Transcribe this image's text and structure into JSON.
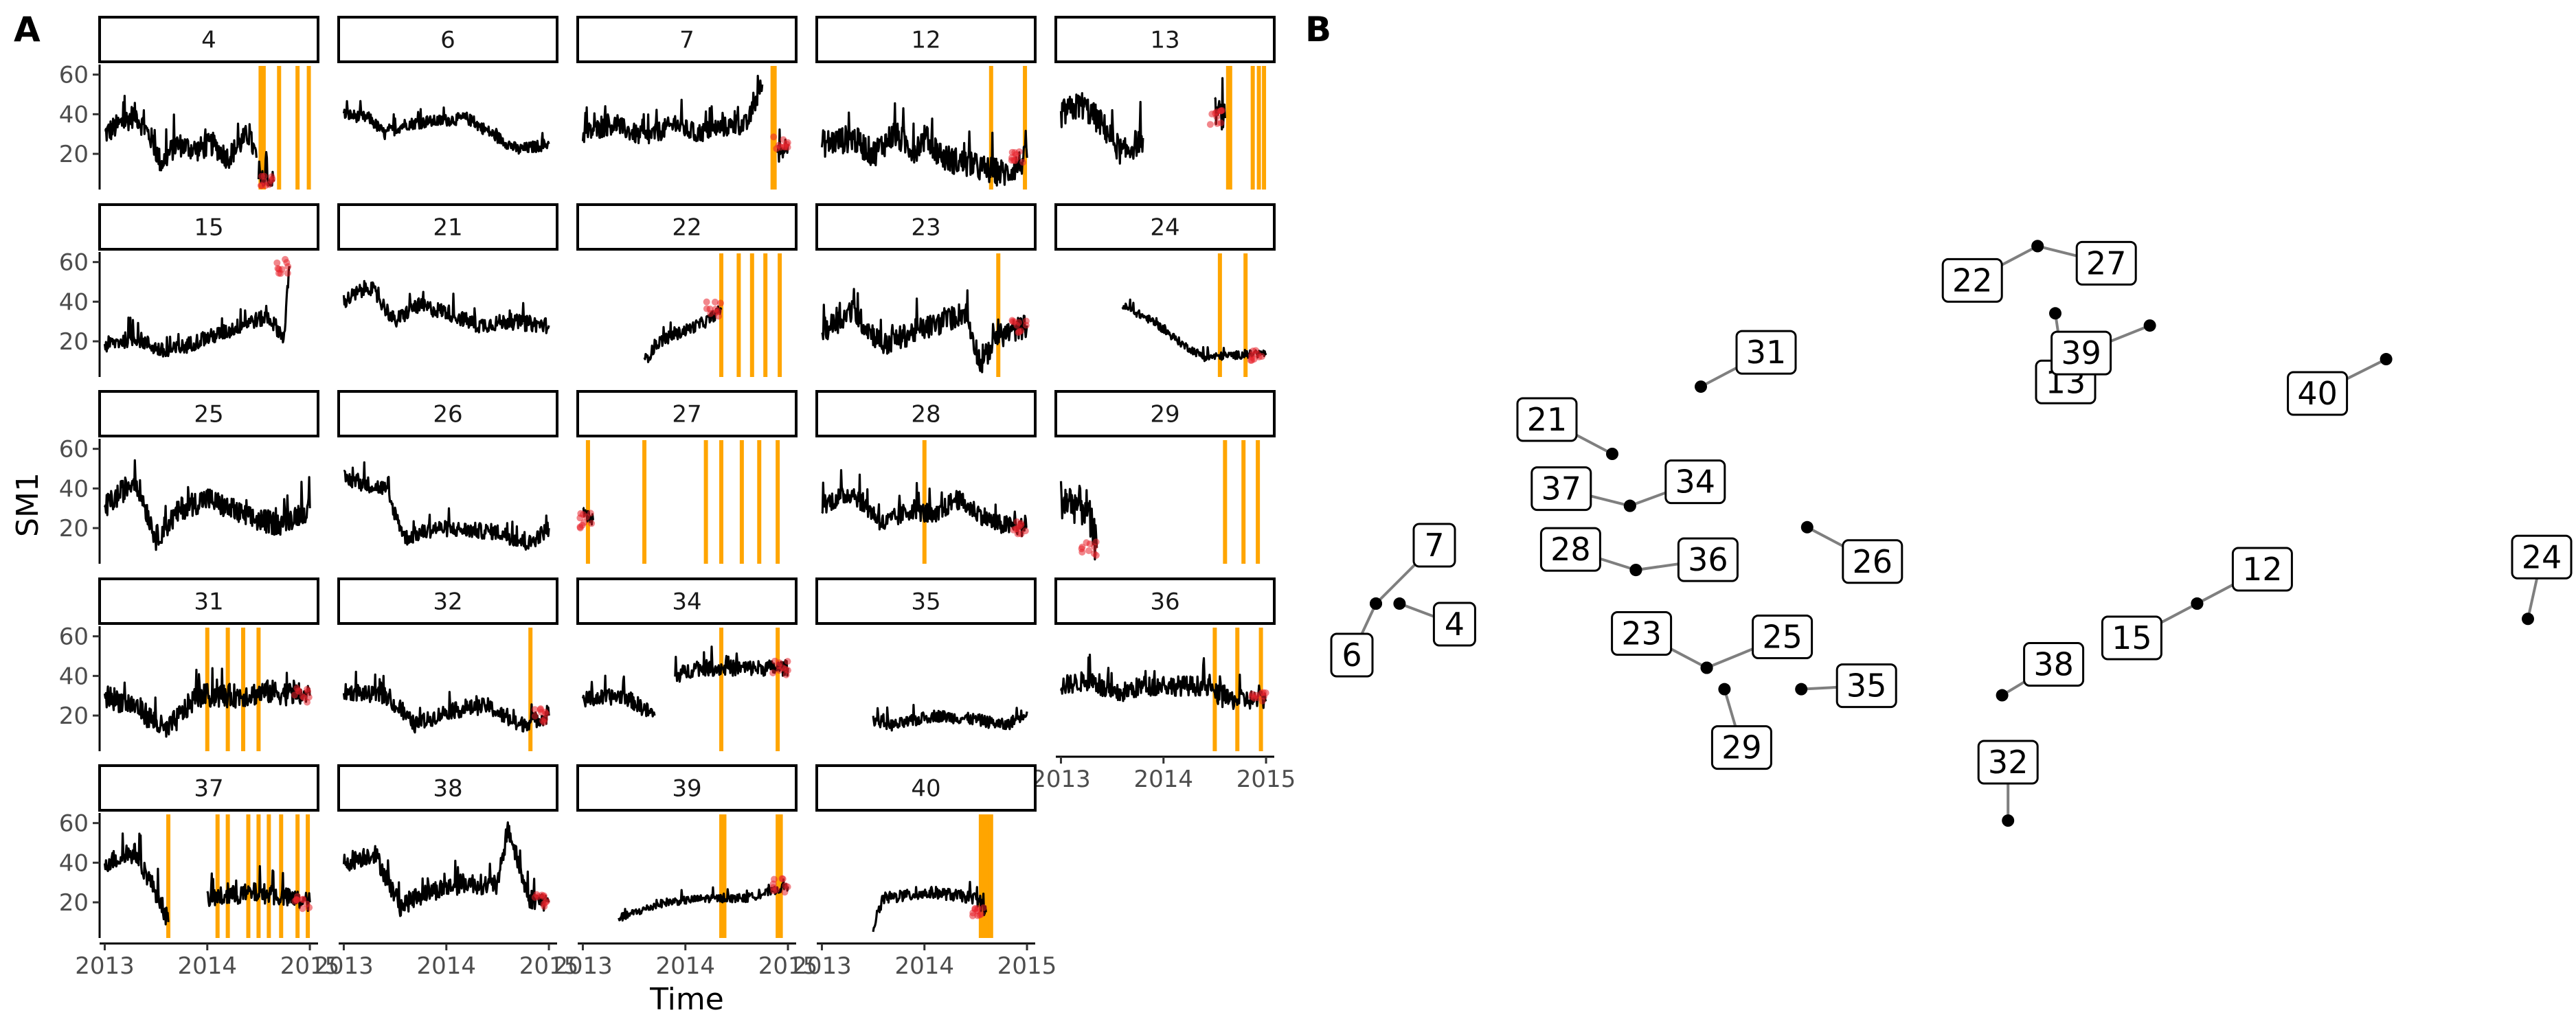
{
  "panel_labels": {
    "a": "A",
    "b": "B"
  },
  "colors": {
    "series": "#000000",
    "anomaly_points": "#e8222b",
    "events": "#ffa500",
    "network_edge": "#7f7f7f",
    "node": "#000000"
  },
  "chart_data": [
    {
      "type": "line",
      "panel": "A",
      "facet_by": "station",
      "xlabel": "Time",
      "ylabel": "SM1",
      "x_ticks": [
        "2013",
        "2014",
        "2015"
      ],
      "y_ticks": [
        20,
        40,
        60
      ],
      "xlim": [
        "2013-01-01",
        "2015-01-10"
      ],
      "ylim": [
        2,
        63
      ],
      "grid": false,
      "series_color": "#000000",
      "anomaly_color": "#e8222b",
      "event_line_color": "#ffa500",
      "facets": [
        {
          "id": "4",
          "events": [
            2014.52,
            2014.55,
            2014.7,
            2014.88,
            2014.99
          ],
          "profile": [
            [
              2013.0,
              30
            ],
            [
              2013.3,
              40
            ],
            [
              2013.45,
              28
            ],
            [
              2013.55,
              15
            ],
            [
              2013.7,
              25
            ],
            [
              2013.9,
              22
            ],
            [
              2014.05,
              25
            ],
            [
              2014.2,
              18
            ],
            [
              2014.4,
              30
            ],
            [
              2014.48,
              18
            ]
          ],
          "profile2": [
            [
              2014.5,
              6
            ],
            [
              2014.65,
              6
            ]
          ],
          "noise": 6
        },
        {
          "id": "6",
          "events": [],
          "profile": [
            [
              2013.0,
              40
            ],
            [
              2013.25,
              38
            ],
            [
              2013.4,
              30
            ],
            [
              2013.6,
              35
            ],
            [
              2014.2,
              38
            ],
            [
              2014.7,
              22
            ],
            [
              2015.0,
              25
            ]
          ],
          "noise": 3
        },
        {
          "id": "7",
          "events": [
            2014.85,
            2014.87
          ],
          "profile": [
            [
              2013.0,
              30
            ],
            [
              2013.3,
              35
            ],
            [
              2013.6,
              28
            ],
            [
              2013.9,
              35
            ],
            [
              2014.1,
              30
            ],
            [
              2014.3,
              33
            ],
            [
              2014.6,
              35
            ],
            [
              2014.75,
              55
            ]
          ],
          "profile2": [
            [
              2014.9,
              20
            ],
            [
              2015.0,
              25
            ]
          ],
          "noise": 5
        },
        {
          "id": "12",
          "events": [
            2014.65,
            2014.98
          ],
          "profile": [
            [
              2013.0,
              25
            ],
            [
              2013.3,
              28
            ],
            [
              2013.5,
              20
            ],
            [
              2013.7,
              30
            ],
            [
              2013.9,
              22
            ],
            [
              2014.0,
              28
            ],
            [
              2014.2,
              18
            ],
            [
              2014.6,
              12
            ],
            [
              2014.8,
              10
            ],
            [
              2015.0,
              18
            ]
          ],
          "noise": 7
        },
        {
          "id": "13",
          "events": [
            2014.63,
            2014.65,
            2014.87,
            2014.93,
            2014.98
          ],
          "profile": [
            [
              2013.0,
              40
            ],
            [
              2013.2,
              45
            ],
            [
              2013.4,
              35
            ],
            [
              2013.6,
              20
            ],
            [
              2013.8,
              28
            ]
          ],
          "profile2": [
            [
              2014.5,
              42
            ],
            [
              2014.6,
              38
            ]
          ],
          "noise": 7
        },
        {
          "id": "15",
          "events": [],
          "profile": [
            [
              2013.0,
              18
            ],
            [
              2013.3,
              22
            ],
            [
              2013.6,
              14
            ],
            [
              2013.9,
              20
            ],
            [
              2014.2,
              25
            ],
            [
              2014.4,
              30
            ],
            [
              2014.6,
              32
            ],
            [
              2014.75,
              22
            ],
            [
              2014.8,
              58
            ]
          ],
          "noise": 4
        },
        {
          "id": "21",
          "events": [],
          "profile": [
            [
              2013.0,
              40
            ],
            [
              2013.25,
              48
            ],
            [
              2013.5,
              30
            ],
            [
              2013.7,
              38
            ],
            [
              2014.0,
              35
            ],
            [
              2014.3,
              28
            ],
            [
              2014.6,
              30
            ],
            [
              2015.0,
              28
            ]
          ],
          "noise": 4
        },
        {
          "id": "22",
          "events": [
            2014.35,
            2014.52,
            2014.65,
            2014.78,
            2014.92
          ],
          "profile": [
            [
              2013.6,
              10
            ],
            [
              2013.75,
              20
            ],
            [
              2014.2,
              30
            ],
            [
              2014.35,
              36
            ]
          ],
          "noise": 3
        },
        {
          "id": "23",
          "events": [
            2014.72
          ],
          "profile": [
            [
              2013.0,
              25
            ],
            [
              2013.3,
              35
            ],
            [
              2013.6,
              18
            ],
            [
              2013.9,
              25
            ],
            [
              2014.2,
              30
            ],
            [
              2014.4,
              35
            ],
            [
              2014.55,
              8
            ],
            [
              2014.7,
              22
            ],
            [
              2015.0,
              28
            ]
          ],
          "noise": 6
        },
        {
          "id": "24",
          "events": [
            2014.55,
            2014.8
          ],
          "profile": [
            [
              2013.6,
              38
            ],
            [
              2013.9,
              30
            ],
            [
              2014.2,
              18
            ],
            [
              2014.4,
              12
            ],
            [
              2015.0,
              14
            ]
          ],
          "noise": 2
        },
        {
          "id": "25",
          "events": [],
          "profile": [
            [
              2013.0,
              30
            ],
            [
              2013.3,
              45
            ],
            [
              2013.5,
              15
            ],
            [
              2013.75,
              30
            ],
            [
              2014.0,
              35
            ],
            [
              2014.4,
              25
            ],
            [
              2014.7,
              22
            ],
            [
              2015.0,
              30
            ]
          ],
          "noise": 6
        },
        {
          "id": "26",
          "events": [],
          "profile": [
            [
              2013.0,
              45
            ],
            [
              2013.4,
              40
            ],
            [
              2013.6,
              15
            ],
            [
              2013.9,
              20
            ],
            [
              2014.5,
              18
            ],
            [
              2014.8,
              12
            ],
            [
              2015.0,
              20
            ]
          ],
          "noise": 4
        },
        {
          "id": "27",
          "events": [
            2013.05,
            2013.6,
            2014.2,
            2014.35,
            2014.55,
            2014.72,
            2014.9
          ],
          "profile": [
            [
              2013.0,
              28
            ],
            [
              2013.1,
              24
            ]
          ],
          "noise": 3
        },
        {
          "id": "28",
          "events": [
            2014.0
          ],
          "profile": [
            [
              2013.0,
              32
            ],
            [
              2013.3,
              38
            ],
            [
              2013.6,
              22
            ],
            [
              2013.9,
              30
            ],
            [
              2014.1,
              25
            ],
            [
              2014.3,
              35
            ],
            [
              2014.7,
              22
            ],
            [
              2015.0,
              20
            ]
          ],
          "noise": 5
        },
        {
          "id": "29",
          "events": [
            2014.6,
            2014.78,
            2014.92
          ],
          "profile": [
            [
              2013.0,
              35
            ],
            [
              2013.25,
              30
            ],
            [
              2013.35,
              10
            ]
          ],
          "noise": 10
        },
        {
          "id": "31",
          "events": [
            2014.0,
            2014.2,
            2014.35,
            2014.5
          ],
          "profile": [
            [
              2013.0,
              30
            ],
            [
              2013.3,
              25
            ],
            [
              2013.6,
              12
            ],
            [
              2013.9,
              30
            ],
            [
              2014.3,
              30
            ],
            [
              2014.6,
              32
            ],
            [
              2015.0,
              30
            ]
          ],
          "noise": 6
        },
        {
          "id": "32",
          "events": [
            2014.82
          ],
          "profile": [
            [
              2013.0,
              32
            ],
            [
              2013.4,
              30
            ],
            [
              2013.7,
              15
            ],
            [
              2014.0,
              22
            ],
            [
              2014.4,
              25
            ],
            [
              2014.7,
              15
            ],
            [
              2015.0,
              20
            ]
          ],
          "noise": 4
        },
        {
          "id": "34",
          "events": [
            2014.35,
            2014.9
          ],
          "profile": [
            [
              2013.0,
              28
            ],
            [
              2013.4,
              30
            ],
            [
              2013.7,
              20
            ]
          ],
          "profile2": [
            [
              2013.9,
              40
            ],
            [
              2014.1,
              44
            ],
            [
              2015.0,
              44
            ]
          ],
          "noise": 4
        },
        {
          "id": "35",
          "events": [],
          "profile": [
            [
              2013.5,
              18
            ],
            [
              2013.7,
              15
            ],
            [
              2014.1,
              20
            ],
            [
              2014.5,
              18
            ],
            [
              2014.8,
              15
            ],
            [
              2015.0,
              22
            ]
          ],
          "noise": 3
        },
        {
          "id": "36",
          "events": [
            2014.5,
            2014.72,
            2014.95
          ],
          "profile": [
            [
              2013.0,
              35
            ],
            [
              2013.3,
              38
            ],
            [
              2013.5,
              30
            ],
            [
              2013.8,
              35
            ],
            [
              2014.4,
              35
            ],
            [
              2014.6,
              28
            ],
            [
              2015.0,
              28
            ]
          ],
          "noise": 5
        },
        {
          "id": "37",
          "events": [
            2013.62,
            2014.1,
            2014.2,
            2014.4,
            2014.5,
            2014.6,
            2014.72,
            2014.88,
            2014.98
          ],
          "profile": [
            [
              2013.0,
              40
            ],
            [
              2013.3,
              45
            ],
            [
              2013.55,
              20
            ],
            [
              2013.62,
              10
            ]
          ],
          "profile2": [
            [
              2014.0,
              22
            ],
            [
              2014.5,
              25
            ],
            [
              2015.0,
              20
            ]
          ],
          "noise": 5
        },
        {
          "id": "38",
          "events": [],
          "profile": [
            [
              2013.0,
              40
            ],
            [
              2013.3,
              45
            ],
            [
              2013.55,
              18
            ],
            [
              2013.8,
              25
            ],
            [
              2014.2,
              30
            ],
            [
              2014.5,
              28
            ],
            [
              2014.6,
              58
            ],
            [
              2014.8,
              22
            ],
            [
              2015.0,
              20
            ]
          ],
          "noise": 5
        },
        {
          "id": "39",
          "events": [
            2014.35,
            2014.38,
            2014.9,
            2014.93
          ],
          "profile": [
            [
              2013.35,
              12
            ],
            [
              2013.8,
              20
            ],
            [
              2014.2,
              22
            ],
            [
              2014.6,
              22
            ],
            [
              2015.0,
              28
            ]
          ],
          "noise": 2
        },
        {
          "id": "40",
          "events": [
            2014.55,
            2014.58,
            2014.6,
            2014.63,
            2014.65
          ],
          "profile": [
            [
              2013.5,
              8
            ],
            [
              2013.6,
              22
            ],
            [
              2014.1,
              25
            ],
            [
              2014.5,
              22
            ],
            [
              2014.6,
              15
            ]
          ],
          "noise": 3
        }
      ]
    },
    {
      "type": "scatter",
      "panel": "B",
      "grid": false,
      "nodes": [
        {
          "id": "4",
          "x": 0.045,
          "y": 0.355,
          "label": "4"
        },
        {
          "id": "6",
          "x": 0.025,
          "y": 0.355,
          "label": "6"
        },
        {
          "id": "7",
          "x": 0.025,
          "y": 0.355,
          "label": "7"
        },
        {
          "id": "12",
          "x": 0.72,
          "y": 0.355,
          "label": "12"
        },
        {
          "id": "13",
          "x": 0.6,
          "y": 0.83,
          "label": "13"
        },
        {
          "id": "15",
          "x": 0.72,
          "y": 0.355,
          "label": "15"
        },
        {
          "id": "21",
          "x": 0.225,
          "y": 0.6,
          "label": "21"
        },
        {
          "id": "22",
          "x": 0.585,
          "y": 0.94,
          "label": "22"
        },
        {
          "id": "23",
          "x": 0.305,
          "y": 0.25,
          "label": "23"
        },
        {
          "id": "24",
          "x": 1.0,
          "y": 0.33,
          "label": "24"
        },
        {
          "id": "25",
          "x": 0.305,
          "y": 0.25,
          "label": "25"
        },
        {
          "id": "26",
          "x": 0.39,
          "y": 0.48,
          "label": "26"
        },
        {
          "id": "27",
          "x": 0.585,
          "y": 0.94,
          "label": "27"
        },
        {
          "id": "28",
          "x": 0.245,
          "y": 0.41,
          "label": "28"
        },
        {
          "id": "29",
          "x": 0.32,
          "y": 0.215,
          "label": "29"
        },
        {
          "id": "31",
          "x": 0.3,
          "y": 0.71,
          "label": "31"
        },
        {
          "id": "32",
          "x": 0.56,
          "y": 0.0,
          "label": "32"
        },
        {
          "id": "34",
          "x": 0.24,
          "y": 0.515,
          "label": "34"
        },
        {
          "id": "35",
          "x": 0.385,
          "y": 0.215,
          "label": "35"
        },
        {
          "id": "36",
          "x": 0.245,
          "y": 0.41,
          "label": "36"
        },
        {
          "id": "37",
          "x": 0.24,
          "y": 0.515,
          "label": "37"
        },
        {
          "id": "38",
          "x": 0.555,
          "y": 0.205,
          "label": "38"
        },
        {
          "id": "39",
          "x": 0.68,
          "y": 0.81,
          "label": "39"
        },
        {
          "id": "40",
          "x": 0.88,
          "y": 0.755,
          "label": "40"
        }
      ]
    }
  ]
}
